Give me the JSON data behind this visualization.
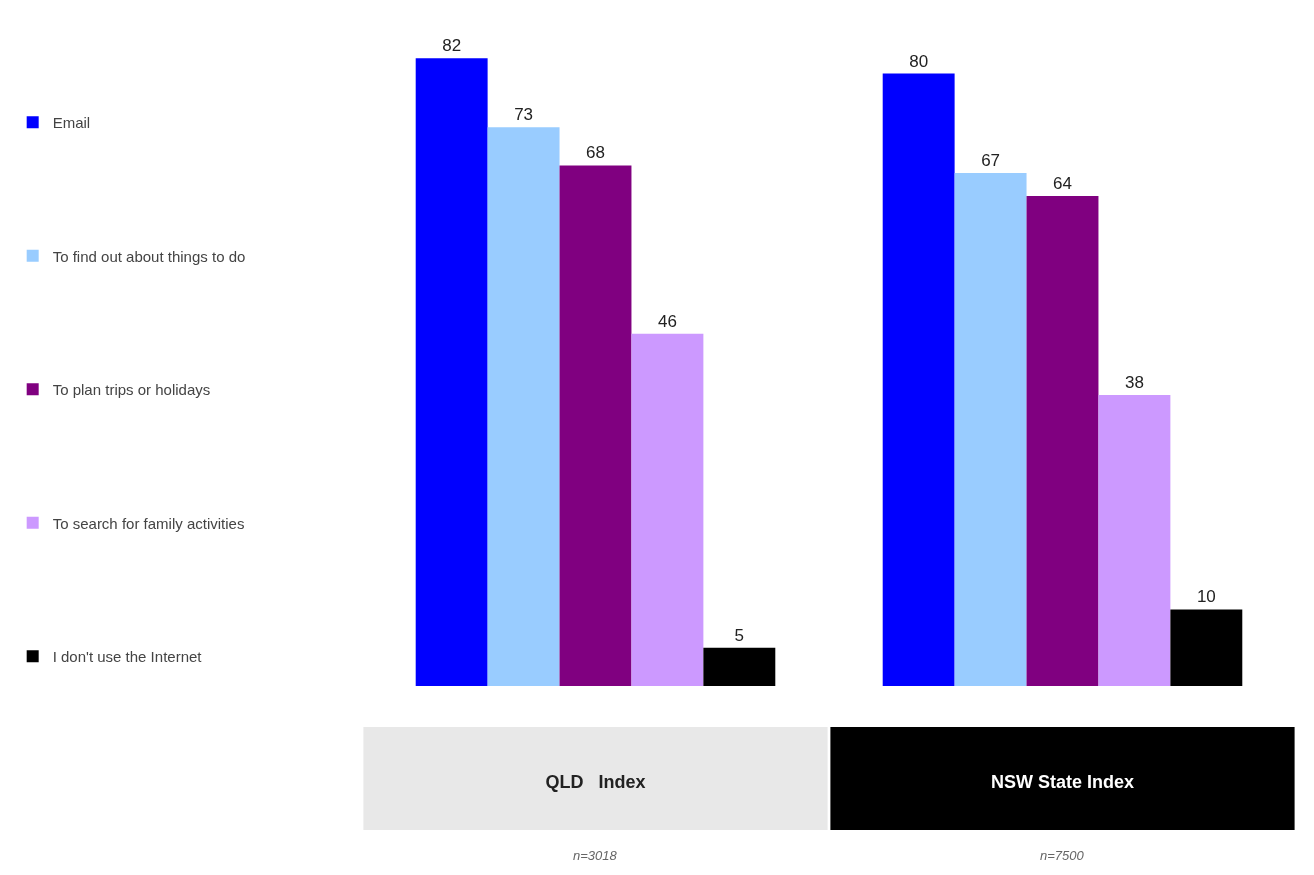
{
  "chart_data": {
    "type": "bar",
    "categories": [
      "QLD   Index",
      "NSW State Index"
    ],
    "series": [
      {
        "name": "Email",
        "color": "#0000ff",
        "values": [
          82,
          80
        ]
      },
      {
        "name": "To find out about things to do",
        "color": "#99ccff",
        "values": [
          73,
          67
        ]
      },
      {
        "name": "To plan trips or holidays",
        "color": "#800080",
        "values": [
          68,
          64
        ]
      },
      {
        "name": "To search for family activities",
        "color": "#cc99ff",
        "values": [
          46,
          38
        ]
      },
      {
        "name": "I don't use the Internet",
        "color": "#000000",
        "values": [
          5,
          10
        ]
      }
    ],
    "data_labels": true,
    "legend": "left",
    "tick_labels": "x",
    "annotations": [
      "n=3018",
      "n=7500"
    ]
  }
}
